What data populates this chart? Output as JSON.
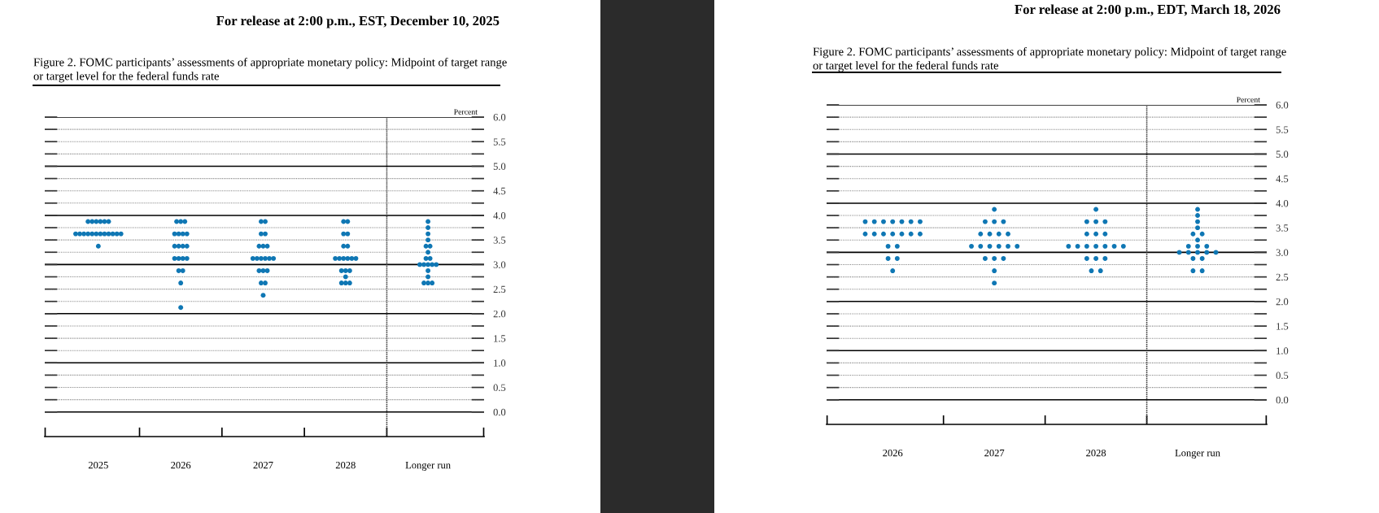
{
  "chart_data": [
    {
      "type": "scatter",
      "annotations": [
        "For release at 2:00 p.m., EST, December 10, 2025"
      ],
      "title": "Figure 2. FOMC participants’ assessments of appropriate monetary policy: Midpoint of target range\nor target level for the federal funds rate",
      "ylabel": "Percent",
      "categories": [
        "2025",
        "2026",
        "2027",
        "2028",
        "Longer run"
      ],
      "marker": "circle",
      "grid": "y",
      "ylim": [
        -0.5,
        6.0
      ],
      "yticks": [
        {
          "value": 0,
          "label": "0.0"
        },
        {
          "value": 0.25,
          "label": null
        },
        0.5,
        {
          "value": 0.75,
          "label": null
        },
        {
          "value": 1,
          "label": "1.0"
        },
        {
          "value": 1.25,
          "label": null
        },
        1.5,
        {
          "value": 1.75,
          "label": null
        },
        {
          "value": 2,
          "label": "2.0"
        },
        {
          "value": 2.25,
          "label": null
        },
        2.5,
        {
          "value": 2.75,
          "label": null
        },
        {
          "value": 3,
          "label": "3.0"
        },
        {
          "value": 3.25,
          "label": null
        },
        3.5,
        {
          "value": 3.75,
          "label": null
        },
        {
          "value": 4,
          "label": "4.0"
        },
        {
          "value": 4.25,
          "label": null
        },
        4.5,
        {
          "value": 4.75,
          "label": null
        },
        {
          "value": 5,
          "label": "5.0"
        },
        {
          "value": 5.25,
          "label": null
        },
        5.5,
        {
          "value": 5.75,
          "label": null
        },
        {
          "value": 6,
          "label": "6.0"
        }
      ],
      "series": [
        {
          "color": "#0f77b4",
          "values": [
            3.875,
            3.875,
            3.875,
            3.875,
            3.875
          ]
        },
        {
          "color": "#0f77b4",
          "values": [
            3.875,
            3.875,
            3.875,
            3.875,
            3.75
          ]
        },
        {
          "color": "#0f77b4",
          "values": [
            3.875,
            3.875,
            3.625,
            3.625,
            3.625
          ]
        },
        {
          "color": "#0f77b4",
          "values": [
            3.875,
            3.625,
            3.625,
            3.625,
            3.5
          ]
        },
        {
          "color": "#0f77b4",
          "values": [
            3.875,
            3.625,
            3.375,
            3.375,
            3.375
          ]
        },
        {
          "color": "#0f77b4",
          "values": [
            3.875,
            3.625,
            3.375,
            3.375,
            3.375
          ]
        },
        {
          "color": "#0f77b4",
          "values": [
            3.625,
            3.625,
            3.375,
            3.125,
            3.25
          ]
        },
        {
          "color": "#0f77b4",
          "values": [
            3.625,
            3.375,
            3.125,
            3.125,
            3.125
          ]
        },
        {
          "color": "#0f77b4",
          "values": [
            3.625,
            3.375,
            3.125,
            3.125,
            3.125
          ]
        },
        {
          "color": "#0f77b4",
          "values": [
            3.625,
            3.375,
            3.125,
            3.125,
            3.0
          ]
        },
        {
          "color": "#0f77b4",
          "values": [
            3.625,
            3.375,
            3.125,
            3.125,
            3.0
          ]
        },
        {
          "color": "#0f77b4",
          "values": [
            3.625,
            3.125,
            3.125,
            3.125,
            3.0
          ]
        },
        {
          "color": "#0f77b4",
          "values": [
            3.625,
            3.125,
            3.125,
            2.875,
            3.0
          ]
        },
        {
          "color": "#0f77b4",
          "values": [
            3.625,
            3.125,
            2.875,
            2.875,
            3.0
          ]
        },
        {
          "color": "#0f77b4",
          "values": [
            3.625,
            3.125,
            2.875,
            2.875,
            2.875
          ]
        },
        {
          "color": "#0f77b4",
          "values": [
            3.625,
            2.875,
            2.875,
            2.75,
            2.75
          ]
        },
        {
          "color": "#0f77b4",
          "values": [
            3.625,
            2.875,
            2.625,
            2.625,
            2.625
          ]
        },
        {
          "color": "#0f77b4",
          "values": [
            3.625,
            2.625,
            2.625,
            2.625,
            2.625
          ]
        },
        {
          "color": "#0f77b4",
          "values": [
            3.375,
            2.125,
            2.375,
            2.625,
            2.625
          ]
        }
      ]
    },
    {
      "type": "scatter",
      "annotations": [
        "For release at 2:00 p.m., EDT, March 18, 2026"
      ],
      "title": "Figure 2. FOMC participants’ assessments of appropriate monetary policy: Midpoint of target range\nor target level for the federal funds rate",
      "ylabel": "Percent",
      "categories": [
        "2026",
        "2027",
        "2028",
        "Longer run"
      ],
      "marker": "circle",
      "grid": "y",
      "ylim": [
        -0.5,
        6.0
      ],
      "yticks": [
        {
          "value": 0,
          "label": "0.0"
        },
        {
          "value": 0.25,
          "label": null
        },
        0.5,
        {
          "value": 0.75,
          "label": null
        },
        {
          "value": 1,
          "label": "1.0"
        },
        {
          "value": 1.25,
          "label": null
        },
        1.5,
        {
          "value": 1.75,
          "label": null
        },
        {
          "value": 2,
          "label": "2.0"
        },
        {
          "value": 2.25,
          "label": null
        },
        2.5,
        {
          "value": 2.75,
          "label": null
        },
        {
          "value": 3,
          "label": "3.0"
        },
        {
          "value": 3.25,
          "label": null
        },
        3.5,
        {
          "value": 3.75,
          "label": null
        },
        {
          "value": 4,
          "label": "4.0"
        },
        {
          "value": 4.25,
          "label": null
        },
        4.5,
        {
          "value": 4.75,
          "label": null
        },
        {
          "value": 5,
          "label": "5.0"
        },
        {
          "value": 5.25,
          "label": null
        },
        5.5,
        {
          "value": 5.75,
          "label": null
        },
        {
          "value": 6,
          "label": "6.0"
        }
      ],
      "series": [
        {
          "color": "#0f77b4",
          "values": [
            3.625,
            3.875,
            3.875,
            3.875
          ]
        },
        {
          "color": "#0f77b4",
          "values": [
            3.625,
            3.625,
            3.625,
            3.75
          ]
        },
        {
          "color": "#0f77b4",
          "values": [
            3.625,
            3.625,
            3.625,
            3.625
          ]
        },
        {
          "color": "#0f77b4",
          "values": [
            3.625,
            3.625,
            3.625,
            3.5
          ]
        },
        {
          "color": "#0f77b4",
          "values": [
            3.625,
            3.375,
            3.375,
            3.375
          ]
        },
        {
          "color": "#0f77b4",
          "values": [
            3.625,
            3.375,
            3.375,
            3.375
          ]
        },
        {
          "color": "#0f77b4",
          "values": [
            3.625,
            3.375,
            3.375,
            3.25
          ]
        },
        {
          "color": "#0f77b4",
          "values": [
            3.375,
            3.375,
            3.125,
            3.125
          ]
        },
        {
          "color": "#0f77b4",
          "values": [
            3.375,
            3.125,
            3.125,
            3.125
          ]
        },
        {
          "color": "#0f77b4",
          "values": [
            3.375,
            3.125,
            3.125,
            3.125
          ]
        },
        {
          "color": "#0f77b4",
          "values": [
            3.375,
            3.125,
            3.125,
            3.0
          ]
        },
        {
          "color": "#0f77b4",
          "values": [
            3.375,
            3.125,
            3.125,
            3.0
          ]
        },
        {
          "color": "#0f77b4",
          "values": [
            3.375,
            3.125,
            3.125,
            3.0
          ]
        },
        {
          "color": "#0f77b4",
          "values": [
            3.375,
            3.125,
            3.125,
            3.0
          ]
        },
        {
          "color": "#0f77b4",
          "values": [
            3.125,
            2.875,
            2.875,
            3.0
          ]
        },
        {
          "color": "#0f77b4",
          "values": [
            3.125,
            2.875,
            2.875,
            2.875
          ]
        },
        {
          "color": "#0f77b4",
          "values": [
            2.875,
            2.875,
            2.875,
            2.875
          ]
        },
        {
          "color": "#0f77b4",
          "values": [
            2.875,
            2.625,
            2.625,
            2.625
          ]
        },
        {
          "color": "#0f77b4",
          "values": [
            2.625,
            2.375,
            2.625,
            2.625
          ]
        }
      ]
    }
  ]
}
